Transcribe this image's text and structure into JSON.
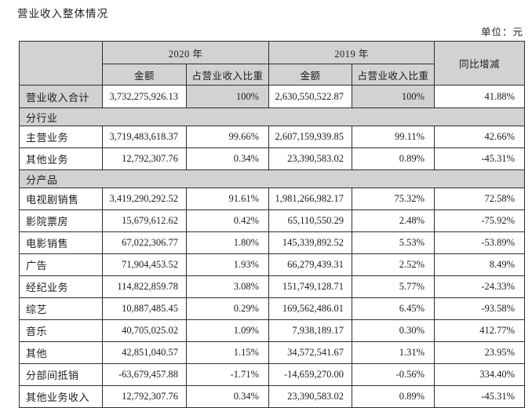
{
  "page": {
    "title": "营业收入整体情况",
    "unit_label": "单位：元"
  },
  "table": {
    "header": {
      "year_2020": "2020 年",
      "year_2019": "2019 年",
      "amount_2020": "金额",
      "pct_2020": "占营业收入比重",
      "amount_2019": "金额",
      "pct_2019": "占营业收入比重",
      "yoy_change": "同比增减"
    },
    "rows": [
      {
        "type": "total",
        "label": "营业收入合计",
        "a2020": "3,732,275,926.13",
        "p2020": "100%",
        "a2019": "2,630,550,522.87",
        "p2019": "100%",
        "yoy": "41.88%"
      },
      {
        "type": "section",
        "label": "分行业"
      },
      {
        "type": "data",
        "label": "主营业务",
        "a2020": "3,719,483,618.37",
        "p2020": "99.66%",
        "a2019": "2,607,159,939.85",
        "p2019": "99.11%",
        "yoy": "42.66%"
      },
      {
        "type": "data",
        "label": "其他业务",
        "a2020": "12,792,307.76",
        "p2020": "0.34%",
        "a2019": "23,390,583.02",
        "p2019": "0.89%",
        "yoy": "-45.31%"
      },
      {
        "type": "section",
        "label": "分产品"
      },
      {
        "type": "data",
        "label": "电视剧销售",
        "a2020": "3,419,290,292.52",
        "p2020": "91.61%",
        "a2019": "1,981,266,982.17",
        "p2019": "75.32%",
        "yoy": "72.58%"
      },
      {
        "type": "data",
        "label": "影院票房",
        "a2020": "15,679,612.62",
        "p2020": "0.42%",
        "a2019": "65,110,550.29",
        "p2019": "2.48%",
        "yoy": "-75.92%"
      },
      {
        "type": "data",
        "label": "电影销售",
        "a2020": "67,022,306.77",
        "p2020": "1.80%",
        "a2019": "145,339,892.52",
        "p2019": "5.53%",
        "yoy": "-53.89%"
      },
      {
        "type": "data",
        "label": "广告",
        "a2020": "71,904,453.52",
        "p2020": "1.93%",
        "a2019": "66,279,439.31",
        "p2019": "2.52%",
        "yoy": "8.49%"
      },
      {
        "type": "data",
        "label": "经纪业务",
        "a2020": "114,822,859.78",
        "p2020": "3.08%",
        "a2019": "151,749,128.71",
        "p2019": "5.77%",
        "yoy": "-24.33%"
      },
      {
        "type": "data",
        "label": "综艺",
        "a2020": "10,887,485.45",
        "p2020": "0.29%",
        "a2019": "169,562,486.01",
        "p2019": "6.45%",
        "yoy": "-93.58%"
      },
      {
        "type": "data",
        "label": "音乐",
        "a2020": "40,705,025.02",
        "p2020": "1.09%",
        "a2019": "7,938,189.17",
        "p2019": "0.30%",
        "yoy": "412.77%"
      },
      {
        "type": "data",
        "label": "其他",
        "a2020": "42,851,040.57",
        "p2020": "1.15%",
        "a2019": "34,572,541.67",
        "p2019": "1.31%",
        "yoy": "23.95%"
      },
      {
        "type": "data",
        "label": "分部间抵销",
        "a2020": "-63,679,457.88",
        "p2020": "-1.71%",
        "a2019": "-14,659,270.00",
        "p2019": "-0.56%",
        "yoy": "334.40%"
      },
      {
        "type": "data",
        "label": "其他业务收入",
        "a2020": "12,792,307.76",
        "p2020": "0.34%",
        "a2019": "23,390,583.02",
        "p2019": "0.89%",
        "yoy": "-45.31%"
      }
    ]
  },
  "colors": {
    "header_bg": "#d2d2d2",
    "border": "#2e2e2e",
    "background": "#ffffff"
  }
}
